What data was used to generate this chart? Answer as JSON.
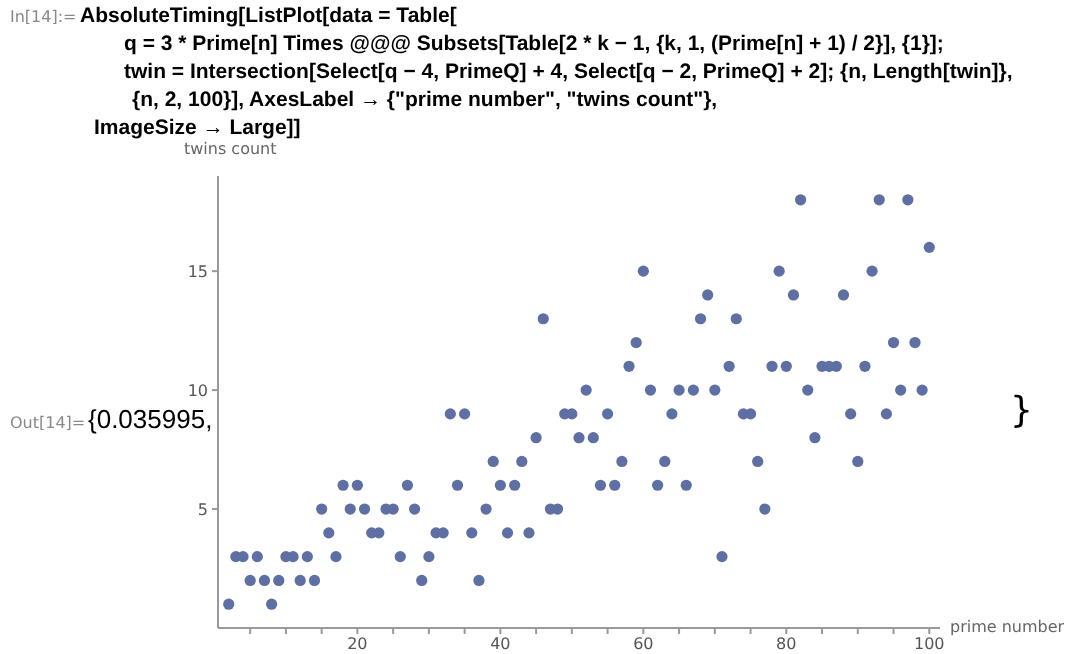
{
  "chart_data": {
    "type": "scatter",
    "annotations": [
      "In[14]:=",
      "AbsoluteTiming[ListPlot[data = Table[",
      "q = 3 * Prime[n] Times @@@ Subsets[Table[2 * k − 1, {k, 1, (Prime[n] + 1) / 2}], {1}];",
      "twin = Intersection[Select[q − 4, PrimeQ] + 4, Select[q − 2, PrimeQ] + 2]; {n, Length[twin]},",
      "{n, 2, 100}], AxesLabel → {\"prime number\", \"twins count\"},",
      "ImageSize → Large]]",
      "Out[14]=",
      "{0.035995,",
      "}"
    ],
    "xlabel": "prime number",
    "ylabel": "twins count",
    "x": [
      2,
      3,
      4,
      5,
      6,
      7,
      8,
      9,
      10,
      11,
      12,
      13,
      14,
      15,
      16,
      17,
      18,
      19,
      20,
      21,
      22,
      23,
      24,
      25,
      26,
      27,
      28,
      29,
      30,
      31,
      32,
      33,
      34,
      35,
      36,
      37,
      38,
      39,
      40,
      41,
      42,
      43,
      44,
      45,
      46,
      47,
      48,
      49,
      50,
      51,
      52,
      53,
      54,
      55,
      56,
      57,
      58,
      59,
      60,
      61,
      62,
      63,
      64,
      65,
      66,
      67,
      68,
      69,
      70,
      71,
      72,
      73,
      74,
      75,
      76,
      77,
      78,
      79,
      80,
      81,
      82,
      83,
      84,
      85,
      86,
      87,
      88,
      89,
      90,
      91,
      92,
      93,
      94,
      95,
      96,
      97,
      98,
      99,
      100
    ],
    "series": [
      {
        "color": "#5e6fa3",
        "values": [
          1,
          3,
          3,
          2,
          3,
          2,
          1,
          2,
          3,
          3,
          2,
          3,
          2,
          5,
          4,
          3,
          6,
          5,
          6,
          5,
          4,
          4,
          5,
          5,
          3,
          6,
          5,
          2,
          3,
          4,
          4,
          9,
          6,
          9,
          4,
          2,
          5,
          7,
          6,
          4,
          6,
          7,
          4,
          8,
          13,
          5,
          5,
          9,
          9,
          8,
          10,
          8,
          6,
          9,
          6,
          7,
          11,
          12,
          15,
          10,
          6,
          7,
          9,
          10,
          6,
          10,
          13,
          14,
          10,
          3,
          11,
          13,
          9,
          9,
          7,
          5,
          11,
          15,
          11,
          14,
          18,
          10,
          8,
          11,
          11,
          11,
          14,
          9,
          7,
          11,
          15,
          18,
          9,
          12,
          10,
          18,
          12,
          10,
          16
        ]
      }
    ],
    "xlim": [
      0.5,
      101.5
    ],
    "ylim": [
      0,
      19
    ],
    "xticks": [
      {
        "value": 5,
        "label": null
      },
      {
        "value": 10,
        "label": null
      },
      {
        "value": 15,
        "label": null
      },
      20,
      {
        "value": 25,
        "label": null
      },
      {
        "value": 30,
        "label": null
      },
      {
        "value": 35,
        "label": null
      },
      40,
      {
        "value": 45,
        "label": null
      },
      {
        "value": 50,
        "label": null
      },
      {
        "value": 55,
        "label": null
      },
      60,
      {
        "value": 65,
        "label": null
      },
      {
        "value": 70,
        "label": null
      },
      {
        "value": 75,
        "label": null
      },
      80,
      {
        "value": 85,
        "label": null
      },
      {
        "value": 90,
        "label": null
      },
      {
        "value": 95,
        "label": null
      },
      100
    ],
    "yticks": [
      5,
      10,
      15
    ],
    "grid": false,
    "legend": false,
    "marker": "circle"
  }
}
